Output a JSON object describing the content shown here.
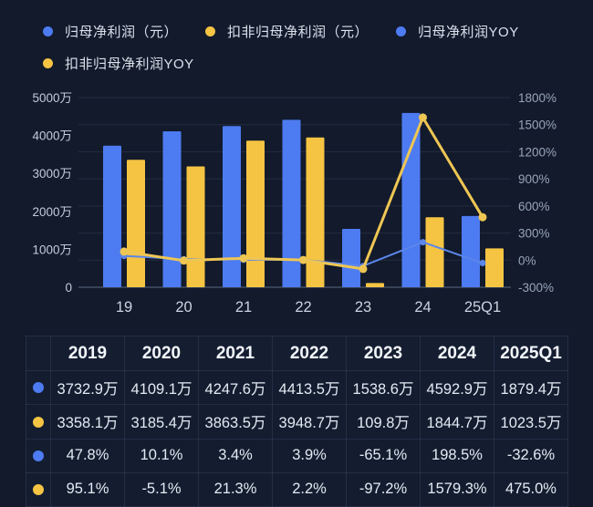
{
  "legend": {
    "rows": [
      [
        {
          "id": "net-profit",
          "label": "归母净利润（元）",
          "color_key": "blue"
        },
        {
          "id": "deducted-net-profit",
          "label": "扣非归母净利润（元）",
          "color_key": "yellow"
        },
        {
          "id": "net-profit-yoy",
          "label": "归母净利润YOY",
          "color_key": "blue"
        }
      ],
      [
        {
          "id": "deducted-net-profit-yoy",
          "label": "扣非归母净利润YOY",
          "color_key": "yellow"
        }
      ]
    ]
  },
  "chart_data": {
    "type": "bar+line",
    "categories": [
      "19",
      "20",
      "21",
      "22",
      "23",
      "24",
      "25Q1"
    ],
    "left_axis": {
      "unit": "万",
      "min": 0,
      "max": 5000,
      "ticks": [
        "5000万",
        "4000万",
        "3000万",
        "2000万",
        "1000万",
        "0"
      ]
    },
    "right_axis": {
      "unit": "%",
      "min": -300,
      "max": 1800,
      "ticks": [
        "1800%",
        "1500%",
        "1200%",
        "900%",
        "600%",
        "300%",
        "0%",
        "-300%"
      ]
    },
    "grid": "horizontal",
    "legend_position": "top",
    "series": [
      {
        "name": "归母净利润（元）",
        "type": "bar",
        "axis": "left",
        "color_key": "blue",
        "values": [
          3732.9,
          4109.1,
          4247.6,
          4413.5,
          1538.6,
          4592.9,
          1879.4
        ]
      },
      {
        "name": "扣非归母净利润（元）",
        "type": "bar",
        "axis": "left",
        "color_key": "yellow",
        "values": [
          3358.1,
          3185.4,
          3863.5,
          3948.7,
          109.8,
          1844.7,
          1023.5
        ]
      },
      {
        "name": "归母净利润YOY",
        "type": "line",
        "axis": "right",
        "color_key": "line_blue",
        "values": [
          47.8,
          10.1,
          3.4,
          3.9,
          -65.1,
          198.5,
          -32.6
        ]
      },
      {
        "name": "扣非归母净利润YOY",
        "type": "line",
        "axis": "right",
        "color_key": "line_yellow",
        "values": [
          95.1,
          -5.1,
          21.3,
          2.2,
          -97.2,
          1579.3,
          475.0
        ]
      }
    ]
  },
  "table": {
    "header": [
      "",
      "2019",
      "2020",
      "2021",
      "2022",
      "2023",
      "2024",
      "2025Q1"
    ],
    "rows": [
      {
        "marker": "blue",
        "series": "归母净利润（元）",
        "cells": [
          "3732.9万",
          "4109.1万",
          "4247.6万",
          "4413.5万",
          "1538.6万",
          "4592.9万",
          "1879.4万"
        ]
      },
      {
        "marker": "yellow",
        "series": "扣非归母净利润（元）",
        "cells": [
          "3358.1万",
          "3185.4万",
          "3863.5万",
          "3948.7万",
          "109.8万",
          "1844.7万",
          "1023.5万"
        ]
      },
      {
        "marker": "blue",
        "series": "归母净利润YOY",
        "cells": [
          "47.8%",
          "10.1%",
          "3.4%",
          "3.9%",
          "-65.1%",
          "198.5%",
          "-32.6%"
        ]
      },
      {
        "marker": "yellow",
        "series": "扣非归母净利润YOY",
        "cells": [
          "95.1%",
          "-5.1%",
          "21.3%",
          "2.2%",
          "-97.2%",
          "1579.3%",
          "475.0%"
        ]
      }
    ]
  },
  "colors": {
    "background": "#121a2b",
    "blue": "#4d7bf1",
    "yellow": "#f5c443",
    "line_blue": "#5b86ea",
    "line_yellow": "#eec653",
    "grid": "rgba(148,166,205,0.14)",
    "baseline": "#5c6981",
    "axis_text_left": "#c4cbd9",
    "axis_text_right": "#99a5bb",
    "x_label": "#ccd3e0",
    "legend_text": "#dbe1ec",
    "table_border": "rgba(130,152,205,0.16)",
    "table_text": "#e4eaf4",
    "header_text": "#f3f6fb"
  }
}
